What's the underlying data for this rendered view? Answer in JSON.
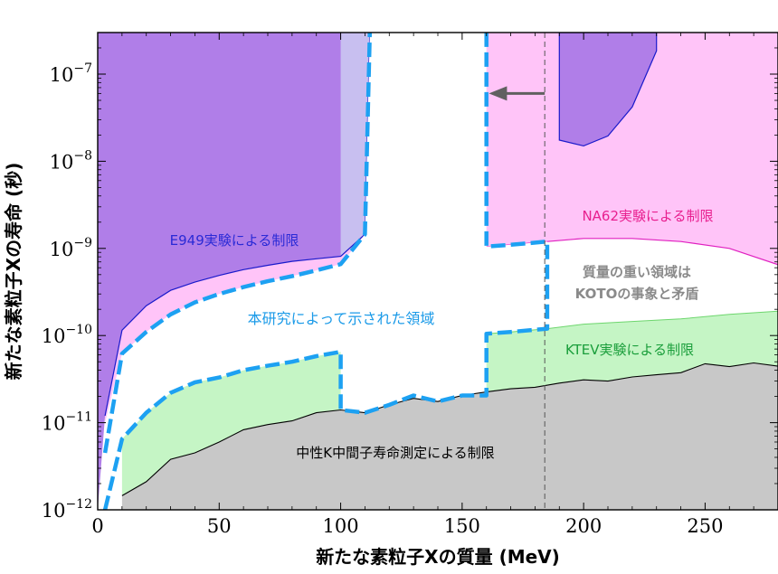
{
  "chart_data": {
    "type": "area",
    "xlabel": "新たな素粒子Xの質量 (MeV)",
    "ylabel": "新たな素粒子Xの寿命 (秒)",
    "xlim": [
      0,
      280
    ],
    "ylim": [
      1e-12,
      3e-07
    ],
    "yscale": "log",
    "x_ticks": [
      0,
      50,
      100,
      150,
      200,
      250
    ],
    "y_ticks": [
      {
        "value": 1e-12,
        "label": "10",
        "exp": "−12"
      },
      {
        "value": 1e-11,
        "label": "10",
        "exp": "−11"
      },
      {
        "value": 1e-10,
        "label": "10",
        "exp": "−10"
      },
      {
        "value": 1e-09,
        "label": "10",
        "exp": "−9"
      },
      {
        "value": 1e-08,
        "label": "10",
        "exp": "−8"
      },
      {
        "value": 1e-07,
        "label": "10",
        "exp": "−7"
      }
    ],
    "colors": {
      "e949": "#b07ee8",
      "na62": "#ffc4f8",
      "ktev": "#c5f5c5",
      "neutral_k": "#c8c8c8",
      "dashed_boundary": "#1da1f2",
      "overlap_e949_na62": "#c8bff0",
      "koto_arrow": "#606060"
    },
    "regions": [
      {
        "id": "neutral_k",
        "label": "中性K中間子寿命測定による制限",
        "label_color": "#000000",
        "points": [
          [
            10,
            1.45e-12
          ],
          [
            20,
            2.1e-12
          ],
          [
            30,
            3.8e-12
          ],
          [
            40,
            4.5e-12
          ],
          [
            50,
            6e-12
          ],
          [
            60,
            8.3e-12
          ],
          [
            70,
            9.5e-12
          ],
          [
            80,
            1.05e-11
          ],
          [
            90,
            1.3e-11
          ],
          [
            100,
            1.4e-11
          ],
          [
            110,
            1.3e-11
          ],
          [
            120,
            1.6e-11
          ],
          [
            130,
            1.9e-11
          ],
          [
            140,
            1.75e-11
          ],
          [
            150,
            2.05e-11
          ],
          [
            160,
            2.25e-11
          ],
          [
            170,
            2.45e-11
          ],
          [
            180,
            2.55e-11
          ],
          [
            190,
            2.85e-11
          ],
          [
            200,
            3.1e-11
          ],
          [
            210,
            3e-11
          ],
          [
            220,
            3.35e-11
          ],
          [
            230,
            3.55e-11
          ],
          [
            240,
            3.75e-11
          ],
          [
            250,
            4.75e-11
          ],
          [
            260,
            4.4e-11
          ],
          [
            270,
            4.85e-11
          ],
          [
            280,
            4.45e-11
          ]
        ]
      },
      {
        "id": "ktev",
        "label": "KTEV実験による制限",
        "label_color": "#1a9e3b",
        "points": [
          [
            10,
            6.5e-12
          ],
          [
            20,
            1.3e-11
          ],
          [
            30,
            2.2e-11
          ],
          [
            40,
            2.9e-11
          ],
          [
            50,
            3.3e-11
          ],
          [
            60,
            4e-11
          ],
          [
            70,
            4.5e-11
          ],
          [
            80,
            5e-11
          ],
          [
            90,
            5.8e-11
          ],
          [
            100,
            6.5e-11
          ],
          [
            160,
            1.05e-10
          ],
          [
            170,
            1.1e-10
          ],
          [
            185,
            1.2e-10
          ],
          [
            200,
            1.35e-10
          ],
          [
            220,
            1.45e-10
          ],
          [
            240,
            1.55e-10
          ],
          [
            260,
            1.75e-10
          ],
          [
            280,
            1.9e-10
          ]
        ]
      },
      {
        "id": "na62",
        "label": "NA62実験による制限",
        "label_color": "#e8208f",
        "points": [
          [
            3,
            1e-11
          ],
          [
            10,
            6.2e-11
          ],
          [
            20,
            1.1e-10
          ],
          [
            30,
            1.75e-10
          ],
          [
            40,
            2.4e-10
          ],
          [
            50,
            3e-10
          ],
          [
            60,
            3.6e-10
          ],
          [
            70,
            4.2e-10
          ],
          [
            80,
            4.8e-10
          ],
          [
            90,
            5.6e-10
          ],
          [
            100,
            6.6e-10
          ],
          [
            160,
            1.05e-09
          ],
          [
            170,
            1.1e-09
          ],
          [
            185,
            1.2e-09
          ],
          [
            200,
            1.3e-09
          ],
          [
            220,
            1.3e-09
          ],
          [
            240,
            1.2e-09
          ],
          [
            260,
            1e-09
          ],
          [
            280,
            6.5e-10
          ]
        ]
      },
      {
        "id": "e949",
        "label": "E949実験による制限",
        "label_color": "#2a2ad6",
        "points": [
          [
            3,
            1.2e-11
          ],
          [
            10,
            1.15e-10
          ],
          [
            20,
            2.2e-10
          ],
          [
            30,
            3.3e-10
          ],
          [
            40,
            4.1e-10
          ],
          [
            50,
            4.9e-10
          ],
          [
            60,
            5.7e-10
          ],
          [
            70,
            6.4e-10
          ],
          [
            80,
            7.1e-10
          ],
          [
            90,
            7.6e-10
          ],
          [
            100,
            8.1e-10
          ],
          [
            110,
            1.45e-09
          ],
          [
            112,
            3e-07
          ]
        ]
      },
      {
        "id": "e949_island",
        "label": "",
        "label_color": "#2a2ad6",
        "points": [
          [
            190,
            3e-07
          ],
          [
            190,
            1.75e-08
          ],
          [
            200,
            1.5e-08
          ],
          [
            210,
            1.95e-08
          ],
          [
            220,
            4.2e-08
          ],
          [
            230,
            1.85e-07
          ],
          [
            230,
            3e-07
          ]
        ]
      }
    ],
    "boundary": {
      "label": "本研究によって示された領域",
      "label_color": "#1a9ae8",
      "upper": [
        [
          3,
          4.5e-12
        ],
        [
          10,
          6.2e-11
        ],
        [
          20,
          1.1e-10
        ],
        [
          30,
          1.75e-10
        ],
        [
          40,
          2.4e-10
        ],
        [
          50,
          3e-10
        ],
        [
          60,
          3.6e-10
        ],
        [
          70,
          4.2e-10
        ],
        [
          80,
          4.8e-10
        ],
        [
          90,
          5.6e-10
        ],
        [
          100,
          6.6e-10
        ],
        [
          110,
          1.45e-09
        ],
        [
          112,
          3e-07
        ]
      ],
      "lower": [
        [
          3,
          1e-12
        ],
        [
          10,
          6.5e-12
        ],
        [
          20,
          1.3e-11
        ],
        [
          30,
          2.2e-11
        ],
        [
          40,
          2.9e-11
        ],
        [
          50,
          3.3e-11
        ],
        [
          60,
          4e-11
        ],
        [
          70,
          4.5e-11
        ],
        [
          80,
          5e-11
        ],
        [
          90,
          5.8e-11
        ],
        [
          100,
          6.5e-11
        ],
        [
          100,
          1.4e-11
        ],
        [
          110,
          1.3e-11
        ],
        [
          120,
          1.6e-11
        ],
        [
          130,
          2.05e-11
        ],
        [
          140,
          1.75e-11
        ],
        [
          150,
          2.05e-11
        ],
        [
          160,
          2.05e-11
        ],
        [
          160,
          1.05e-10
        ],
        [
          170,
          1.1e-10
        ],
        [
          185,
          1.2e-10
        ],
        [
          185,
          1.2e-09
        ],
        [
          170,
          1.1e-09
        ],
        [
          160,
          1.05e-09
        ],
        [
          160,
          3e-07
        ]
      ]
    },
    "koto": {
      "label_line1": "質量の重い領域は",
      "label_line2": "KOTOの事象と矛盾",
      "label_color": "#8a8a8a",
      "x": 184,
      "arrow_from": [
        184,
        6e-08
      ],
      "arrow_to": [
        161,
        6e-08
      ]
    }
  }
}
